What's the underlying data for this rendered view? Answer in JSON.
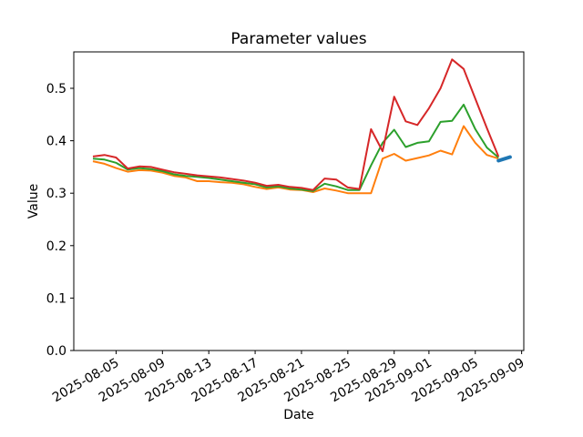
{
  "chart_data": {
    "type": "line",
    "title": "Parameter values",
    "xlabel": "Date",
    "ylabel": "Value",
    "grid": false,
    "legend": "none",
    "background_color": "#ffffff",
    "axis_color": "#000000",
    "ylim": [
      0.0,
      0.57
    ],
    "x_range": [
      "2025-08-03",
      "2025-09-08"
    ],
    "y_tick_labels": [
      "0.0",
      "0.1",
      "0.2",
      "0.3",
      "0.4",
      "0.5"
    ],
    "x_tick_labels": [
      "2025-08-05",
      "2025-08-09",
      "2025-08-13",
      "2025-08-17",
      "2025-08-21",
      "2025-08-25",
      "2025-08-29",
      "2025-09-01",
      "2025-09-05",
      "2025-09-09"
    ],
    "x_tick_rotation_deg": 30,
    "dates": [
      "2025-08-03",
      "2025-08-04",
      "2025-08-05",
      "2025-08-06",
      "2025-08-07",
      "2025-08-08",
      "2025-08-09",
      "2025-08-10",
      "2025-08-11",
      "2025-08-12",
      "2025-08-13",
      "2025-08-14",
      "2025-08-15",
      "2025-08-16",
      "2025-08-17",
      "2025-08-18",
      "2025-08-19",
      "2025-08-20",
      "2025-08-21",
      "2025-08-22",
      "2025-08-23",
      "2025-08-24",
      "2025-08-25",
      "2025-08-26",
      "2025-08-27",
      "2025-08-28",
      "2025-08-29",
      "2025-08-30",
      "2025-08-31",
      "2025-09-01",
      "2025-09-02",
      "2025-09-03",
      "2025-09-04",
      "2025-09-05",
      "2025-09-06",
      "2025-09-07"
    ],
    "series": [
      {
        "name": "orange",
        "color": "#ff7f0e",
        "line_width": 2,
        "values": [
          0.361,
          0.356,
          0.348,
          0.341,
          0.344,
          0.343,
          0.339,
          0.333,
          0.33,
          0.323,
          0.323,
          0.321,
          0.32,
          0.317,
          0.312,
          0.308,
          0.311,
          0.307,
          0.306,
          0.302,
          0.309,
          0.305,
          0.3,
          0.3,
          0.3,
          0.366,
          0.375,
          0.362,
          0.367,
          0.372,
          0.381,
          0.374,
          0.428,
          0.396,
          0.373,
          0.366
        ]
      },
      {
        "name": "green",
        "color": "#2ca02c",
        "line_width": 2,
        "values": [
          0.366,
          0.364,
          0.358,
          0.345,
          0.348,
          0.346,
          0.342,
          0.336,
          0.333,
          0.331,
          0.329,
          0.326,
          0.323,
          0.32,
          0.317,
          0.311,
          0.313,
          0.309,
          0.307,
          0.304,
          0.318,
          0.313,
          0.306,
          0.306,
          0.353,
          0.396,
          0.421,
          0.388,
          0.396,
          0.399,
          0.436,
          0.438,
          0.469,
          0.422,
          0.387,
          0.368
        ]
      },
      {
        "name": "red",
        "color": "#d62728",
        "line_width": 2,
        "values": [
          0.37,
          0.373,
          0.368,
          0.347,
          0.351,
          0.35,
          0.345,
          0.34,
          0.337,
          0.334,
          0.332,
          0.33,
          0.327,
          0.324,
          0.32,
          0.314,
          0.316,
          0.312,
          0.31,
          0.306,
          0.328,
          0.326,
          0.311,
          0.308,
          0.422,
          0.38,
          0.484,
          0.437,
          0.43,
          0.462,
          0.5,
          0.555,
          0.537,
          0.48,
          0.424,
          0.37
        ]
      },
      {
        "name": "blue-endpoint",
        "color": "#1f77b4",
        "line_width": 4,
        "dates": [
          "2025-09-07",
          "2025-09-08"
        ],
        "values": [
          0.362,
          0.369
        ]
      }
    ]
  }
}
